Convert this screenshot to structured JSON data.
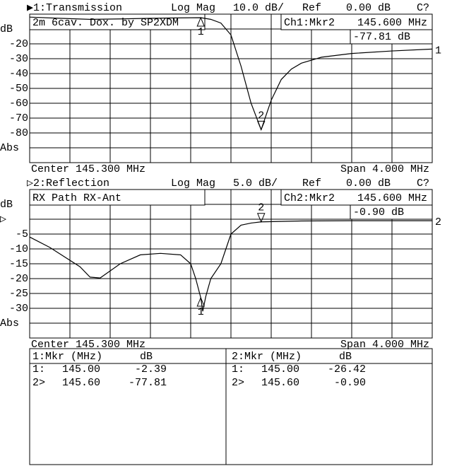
{
  "chart_data": [
    {
      "type": "line",
      "header": "▶1:Transmission",
      "format": "Log Mag",
      "scale": "10.0 dB/",
      "ref_label": "Ref",
      "ref_value": "0.00 dB",
      "status": "C?",
      "annotation": "2m 6cav. Dox. by SP2XDM",
      "marker_readout": {
        "channel": "Ch1:Mkr2",
        "frequency": "145.600 MHz",
        "value": "-77.81 dB"
      },
      "footer_left": "Center 145.300 MHz",
      "footer_right": "Span 4.000 MHz",
      "end_label": "1",
      "color": "#000000",
      "x": [
        143.3,
        143.6,
        143.9,
        144.2,
        144.5,
        144.8,
        145.0,
        145.1,
        145.2,
        145.3,
        145.4,
        145.5,
        145.6,
        145.7,
        145.8,
        145.9,
        146.0,
        146.2,
        146.5,
        146.9,
        147.3
      ],
      "values": [
        -2.0,
        -2.8,
        -3.5,
        -3.2,
        -2.8,
        -2.5,
        -2.39,
        -3.5,
        -6,
        -14,
        -35,
        -60,
        -77.81,
        -58,
        -44,
        -37,
        -33,
        -29,
        -26.5,
        -24.8,
        -23.5
      ],
      "markers": [
        {
          "label": "1",
          "x": 145.0,
          "value": -2.39
        },
        {
          "label": "2",
          "x": 145.6,
          "value": -77.81
        }
      ],
      "xlim": [
        143.3,
        147.3
      ],
      "xticks": [
        143.7,
        144.1,
        144.5,
        144.9,
        145.3,
        145.7,
        146.1,
        146.5,
        146.9
      ],
      "ylim": [
        -100,
        0
      ],
      "yticks": [
        {
          "value": -10,
          "label": "dB"
        },
        -20,
        -30,
        -40,
        -50,
        -60,
        -70,
        -80,
        {
          "value": -90,
          "label": "Abs"
        }
      ],
      "grid": true
    },
    {
      "type": "line",
      "header": "▷2:Reflection",
      "format": "Log Mag",
      "scale": "5.0 dB/",
      "ref_label": "Ref",
      "ref_value": "0.00 dB",
      "status": "C?",
      "annotation": "RX Path RX-Ant",
      "marker_readout": {
        "channel": "Ch2:Mkr2",
        "frequency": "145.600 MHz",
        "value": "-0.90 dB"
      },
      "footer_left": "Center 145.300 MHz",
      "footer_right": "Span 4.000 MHz",
      "end_label": "2",
      "color": "#000000",
      "x": [
        143.3,
        143.5,
        143.8,
        143.9,
        144.0,
        144.2,
        144.4,
        144.6,
        144.8,
        144.9,
        144.95,
        145.0,
        145.02,
        145.05,
        145.1,
        145.2,
        145.25,
        145.3,
        145.4,
        145.5,
        145.6,
        146.0,
        146.5,
        147.3
      ],
      "values": [
        -6,
        -9.5,
        -16,
        -19.5,
        -19.8,
        -15,
        -12,
        -11.5,
        -12,
        -15,
        -20,
        -26.42,
        -31,
        -26,
        -20,
        -15,
        -10,
        -5,
        -2,
        -1.3,
        -0.9,
        -0.6,
        -0.5,
        -0.5
      ],
      "markers": [
        {
          "label": "1",
          "x": 145.0,
          "value": -26.42
        },
        {
          "label": "2",
          "x": 145.6,
          "value": -0.9
        }
      ],
      "xlim": [
        143.3,
        147.3
      ],
      "xticks": [
        143.7,
        144.1,
        144.5,
        144.9,
        145.3,
        145.7,
        146.1,
        146.5,
        146.9
      ],
      "ylim": [
        -40,
        10
      ],
      "yticks": [
        {
          "value": 5,
          "label": "dB"
        },
        {
          "value": 0,
          "label": "▷"
        },
        -5,
        -10,
        -15,
        -20,
        -25,
        -30,
        {
          "value": -35,
          "label": "Abs"
        }
      ],
      "grid": true
    }
  ],
  "marker_table": [
    {
      "header": [
        "1:Mkr (MHz)",
        "dB"
      ],
      "rows": [
        [
          "1:",
          "145.00",
          "-2.39"
        ],
        [
          "2>",
          "145.60",
          "-77.81"
        ]
      ]
    },
    {
      "header": [
        "2:Mkr (MHz)",
        "dB"
      ],
      "rows": [
        [
          "1:",
          "145.00",
          "-26.42"
        ],
        [
          "2>",
          "145.60",
          "-0.90"
        ]
      ]
    }
  ]
}
